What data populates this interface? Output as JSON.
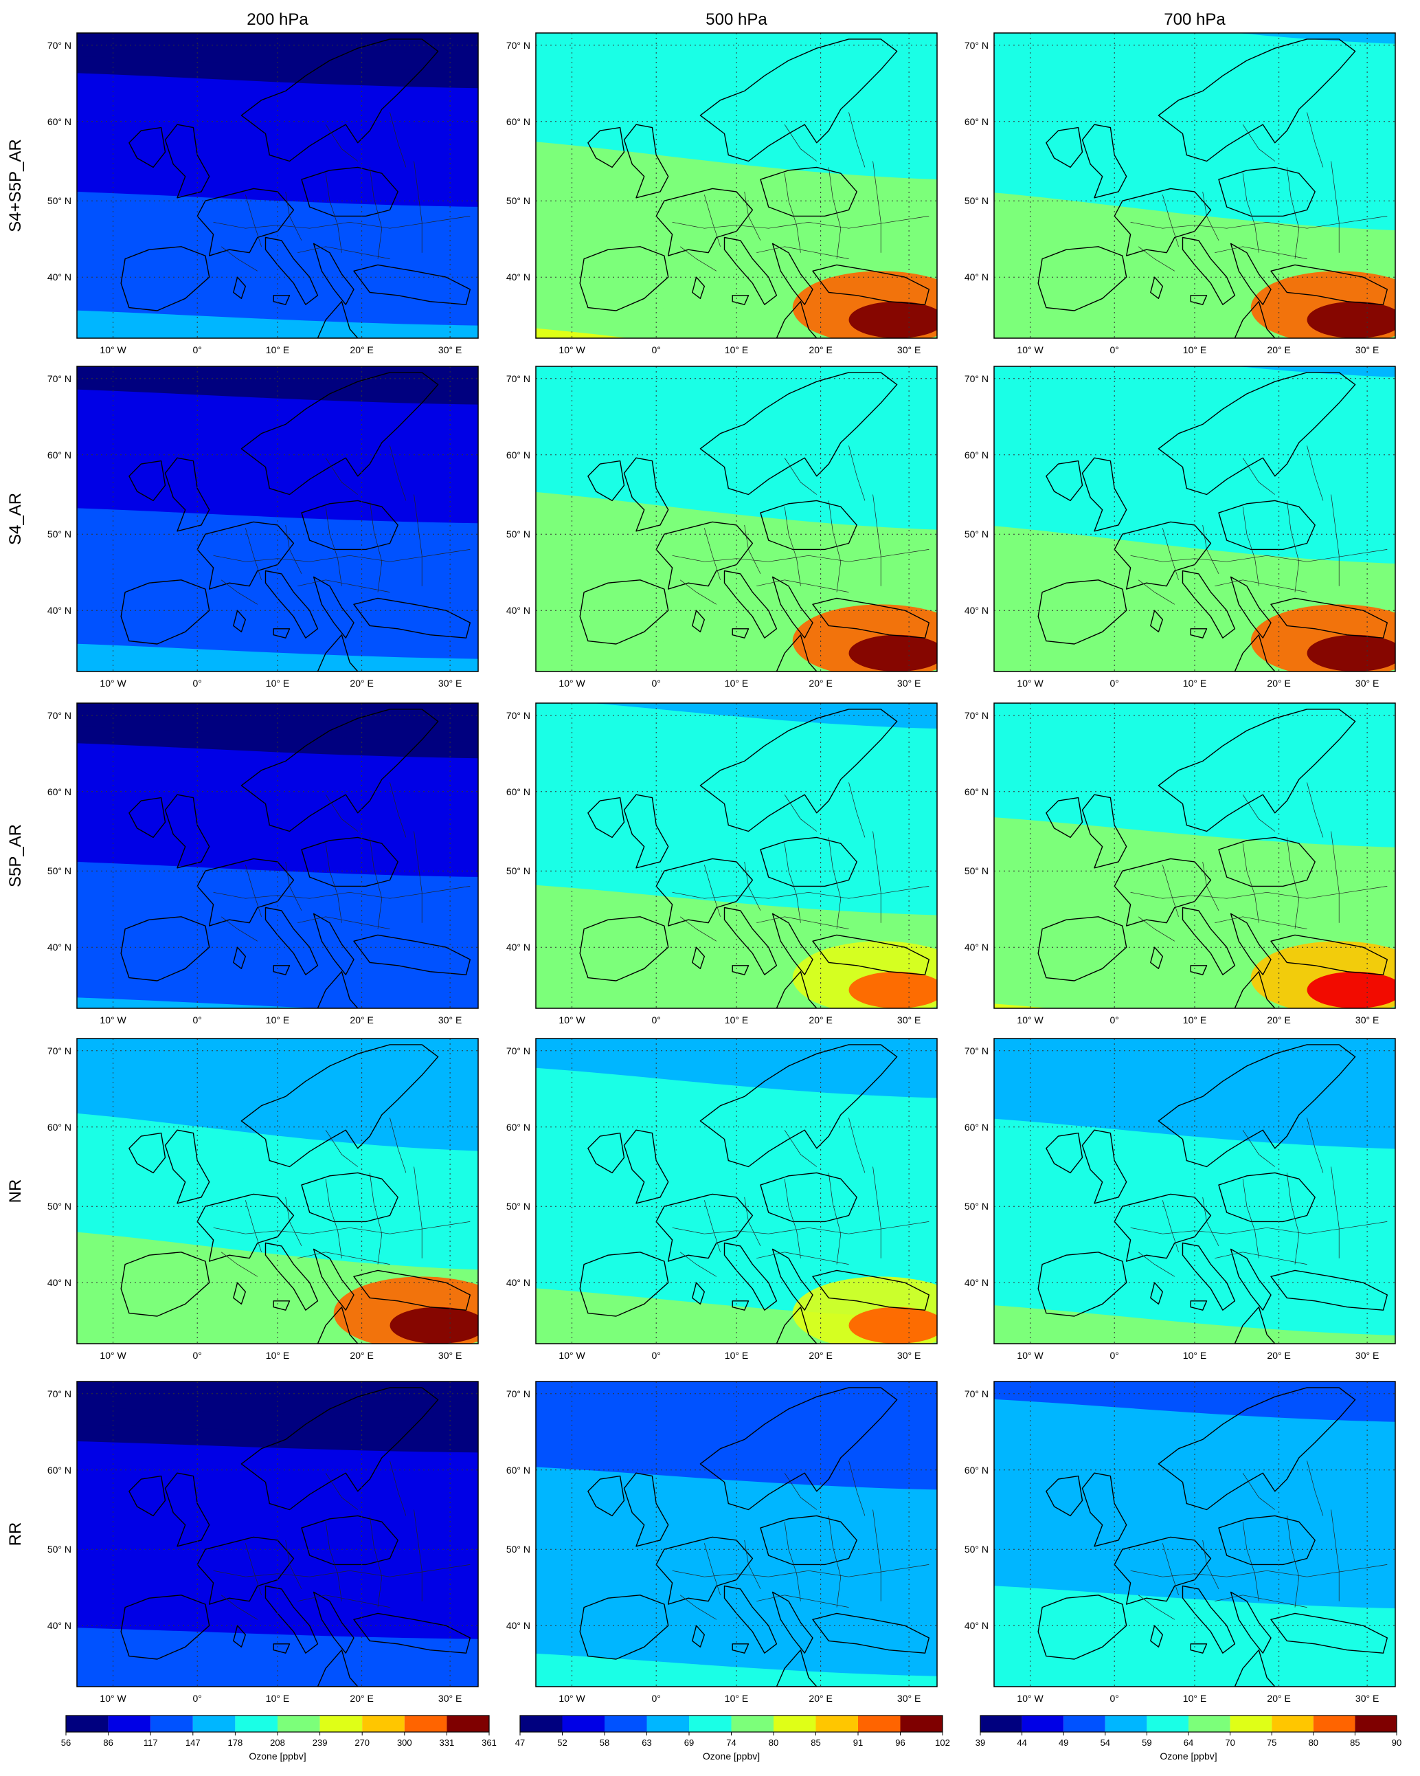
{
  "figure": {
    "columns": [
      {
        "title": "200 hPa"
      },
      {
        "title": "500 hPa"
      },
      {
        "title": "700 hPa"
      }
    ],
    "rows": [
      {
        "label": "S4+S5P_AR"
      },
      {
        "label": "S4_AR"
      },
      {
        "label": "S5P_AR"
      },
      {
        "label": "NR"
      },
      {
        "label": "RR"
      }
    ],
    "lon_ticks": [
      "10° W",
      "0°",
      "10° E",
      "20° E",
      "30° E"
    ],
    "lat_ticks": [
      "70° N",
      "60° N",
      "50° N",
      "40° N"
    ],
    "colorbars": [
      {
        "label": "Ozone [ppbv]",
        "ticks": [
          "56",
          "86",
          "117",
          "147",
          "178",
          "208",
          "239",
          "270",
          "300",
          "331",
          "361"
        ]
      },
      {
        "label": "Ozone [ppbv]",
        "ticks": [
          "47",
          "52",
          "58",
          "63",
          "69",
          "74",
          "80",
          "85",
          "91",
          "96",
          "102"
        ]
      },
      {
        "label": "Ozone [ppbv]",
        "ticks": [
          "39",
          "44",
          "49",
          "54",
          "59",
          "64",
          "70",
          "75",
          "80",
          "85",
          "90"
        ]
      }
    ],
    "palette": [
      "#00007f",
      "#0000e6",
      "#0052ff",
      "#00b6ff",
      "#1affe6",
      "#7cff7a",
      "#dfff17",
      "#ffc600",
      "#ff6400",
      "#f10000",
      "#7f0000"
    ],
    "grid": "dotted",
    "projection": "Lambert conformal, Europe"
  },
  "map_fields": [
    [
      {
        "base": 1.4,
        "lat_grad": -0.33,
        "lon_grad": 0.04,
        "max": 6
      },
      {
        "base": 4.6,
        "lat_grad": -0.22,
        "lon_grad": 0.1,
        "max": 10
      },
      {
        "base": 4.4,
        "lat_grad": -0.22,
        "lon_grad": 0.1,
        "max": 10
      }
    ],
    [
      {
        "base": 1.5,
        "lat_grad": -0.31,
        "lon_grad": 0.04,
        "max": 6
      },
      {
        "base": 4.5,
        "lat_grad": -0.22,
        "lon_grad": 0.1,
        "max": 10
      },
      {
        "base": 4.4,
        "lat_grad": -0.22,
        "lon_grad": 0.1,
        "max": 10
      }
    ],
    [
      {
        "base": 1.4,
        "lat_grad": -0.3,
        "lon_grad": 0.04,
        "max": 6
      },
      {
        "base": 4.3,
        "lat_grad": -0.22,
        "lon_grad": 0.08,
        "max": 8
      },
      {
        "base": 4.6,
        "lat_grad": -0.22,
        "lon_grad": 0.08,
        "max": 9
      }
    ],
    [
      {
        "base": 4.0,
        "lat_grad": -0.3,
        "lon_grad": 0.1,
        "max": 10
      },
      {
        "base": 4.0,
        "lat_grad": -0.18,
        "lon_grad": 0.08,
        "max": 8
      },
      {
        "base": 3.8,
        "lat_grad": -0.2,
        "lon_grad": 0.08,
        "max": 7
      }
    ],
    [
      {
        "base": 1.0,
        "lat_grad": -0.22,
        "lon_grad": 0.03,
        "max": 4
      },
      {
        "base": 2.8,
        "lat_grad": -0.2,
        "lon_grad": 0.06,
        "max": 6
      },
      {
        "base": 3.2,
        "lat_grad": -0.2,
        "lon_grad": 0.06,
        "max": 6
      }
    ]
  ]
}
